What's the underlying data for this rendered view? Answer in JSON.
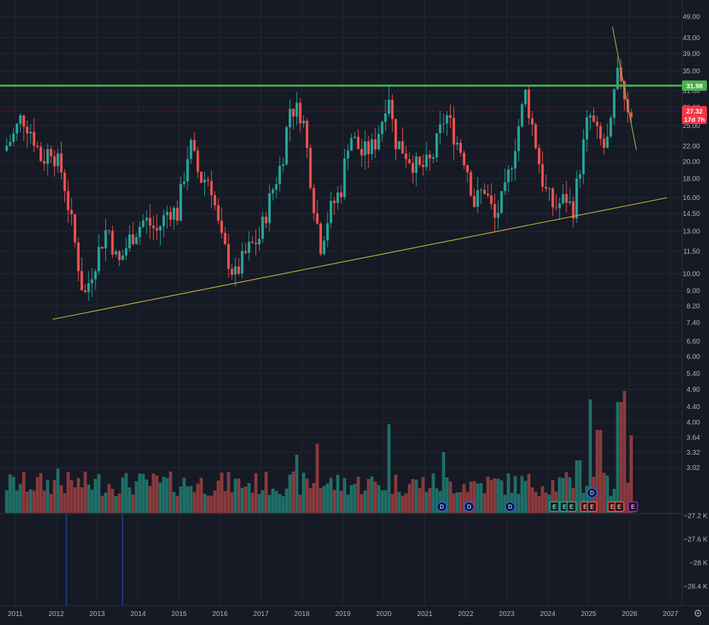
{
  "chart_data": {
    "type": "candlestick",
    "interval": "monthly",
    "price_axis": {
      "scale": "log",
      "ticks": [
        "49.00",
        "43.00",
        "39.00",
        "35.00",
        "31.00",
        "28.00",
        "25.00",
        "22.00",
        "20.00",
        "18.00",
        "16.00",
        "14.50",
        "13.00",
        "11.50",
        "10.00",
        "9.00",
        "8.20",
        "7.40",
        "6.60",
        "6.00",
        "5.40",
        "4.90",
        "4.40",
        "4.00",
        "3.64",
        "3.32",
        "3.02"
      ]
    },
    "oscillator_axis": {
      "ticks": [
        "−27.2 K",
        "−27.6 K",
        "−28 K",
        "−28.4 K"
      ]
    },
    "time_axis": {
      "ticks": [
        "2011",
        "2012",
        "2013",
        "2014",
        "2015",
        "2016",
        "2017",
        "2018",
        "2019",
        "2020",
        "2021",
        "2022",
        "2023",
        "2024",
        "2025",
        "2026",
        "2027"
      ]
    },
    "horizontal_line": {
      "price": 31.98,
      "label": "31.98",
      "color": "#4caf50"
    },
    "last_price": {
      "price": 27.32,
      "label": "27.32",
      "countdown": "17d 7h",
      "color": "#f23645"
    },
    "trendlines": [
      {
        "name": "support",
        "from": [
          "2011-12",
          7.55
        ],
        "to": [
          "2026-12",
          16.0
        ],
        "color": "#c9b03c"
      },
      {
        "name": "resistance",
        "from": [
          "2025-08",
          46.0
        ],
        "to": [
          "2026-03",
          21.5
        ],
        "color": "#8bb34a"
      }
    ],
    "colors": {
      "up": "#26a69a",
      "down": "#ef5350",
      "volume_up": "#1f6e67",
      "volume_down": "#8a3a3c",
      "background": "#161a25",
      "grid": "#232733"
    },
    "events": [
      {
        "label": "D",
        "date": "2021-06",
        "kind": "dividend"
      },
      {
        "label": "D",
        "date": "2022-02",
        "kind": "dividend"
      },
      {
        "label": "D",
        "date": "2023-02",
        "kind": "dividend"
      },
      {
        "label": "E",
        "date": "2024-03",
        "kind": "earnings-up"
      },
      {
        "label": "E",
        "date": "2024-06",
        "kind": "earnings-up"
      },
      {
        "label": "E",
        "date": "2024-08",
        "kind": "earnings-up"
      },
      {
        "label": "E",
        "date": "2024-12",
        "kind": "earnings-down"
      },
      {
        "label": "E",
        "date": "2025-02",
        "kind": "earnings-down"
      },
      {
        "label": "D",
        "date": "2025-02",
        "kind": "dividend-upper"
      },
      {
        "label": "E",
        "date": "2025-08",
        "kind": "earnings-down"
      },
      {
        "label": "E",
        "date": "2025-10",
        "kind": "earnings-down"
      },
      {
        "label": "E",
        "date": "2026-02",
        "kind": "earnings-future"
      }
    ]
  }
}
